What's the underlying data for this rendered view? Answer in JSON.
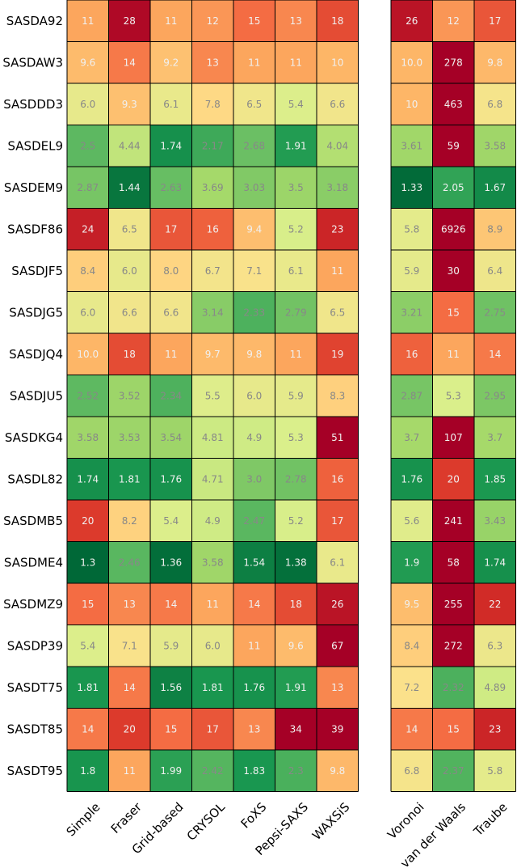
{
  "chart_data": {
    "type": "heatmap",
    "rows": [
      "SASDA92",
      "SASDAW3",
      "SASDDD3",
      "SASDEL9",
      "SASDEM9",
      "SASDF86",
      "SASDJF5",
      "SASDJG5",
      "SASDJQ4",
      "SASDJU5",
      "SASDKG4",
      "SASDL82",
      "SASDMB5",
      "SASDME4",
      "SASDMZ9",
      "SASDP39",
      "SASDT75",
      "SASDT85",
      "SASDT95"
    ],
    "panels": [
      {
        "columns": [
          "Simple",
          "Fraser",
          "Grid-based",
          "CRYSOL",
          "FoXS",
          "Pepsi-SAXS",
          "WAXSiS"
        ],
        "values": [
          [
            "11",
            "28",
            "11",
            "12",
            "15",
            "13",
            "18"
          ],
          [
            "9.6",
            "14",
            "9.2",
            "13",
            "11",
            "11",
            "10"
          ],
          [
            "6.0",
            "9.3",
            "6.1",
            "7.8",
            "6.5",
            "5.4",
            "6.6"
          ],
          [
            "2.5",
            "4.44",
            "1.74",
            "2.17",
            "2.68",
            "1.91",
            "4.04"
          ],
          [
            "2.87",
            "1.44",
            "2.63",
            "3.69",
            "3.03",
            "3.5",
            "3.18"
          ],
          [
            "24",
            "6.5",
            "17",
            "16",
            "9.4",
            "5.2",
            "23"
          ],
          [
            "8.4",
            "6.0",
            "8.0",
            "6.7",
            "7.1",
            "6.1",
            "11"
          ],
          [
            "6.0",
            "6.6",
            "6.6",
            "3.14",
            "2.33",
            "2.79",
            "6.5"
          ],
          [
            "10.0",
            "18",
            "11",
            "9.7",
            "9.8",
            "11",
            "19"
          ],
          [
            "2.52",
            "3.52",
            "2.34",
            "5.5",
            "6.0",
            "5.9",
            "8.3"
          ],
          [
            "3.58",
            "3.53",
            "3.54",
            "4.81",
            "4.9",
            "5.3",
            "51"
          ],
          [
            "1.74",
            "1.81",
            "1.76",
            "4.71",
            "3.0",
            "2.78",
            "16"
          ],
          [
            "20",
            "8.2",
            "5.4",
            "4.9",
            "2.47",
            "5.2",
            "17"
          ],
          [
            "1.3",
            "2.46",
            "1.36",
            "3.58",
            "1.54",
            "1.38",
            "6.1"
          ],
          [
            "15",
            "13",
            "14",
            "11",
            "14",
            "18",
            "26"
          ],
          [
            "5.4",
            "7.1",
            "5.9",
            "6.0",
            "11",
            "9.6",
            "67"
          ],
          [
            "1.81",
            "14",
            "1.56",
            "1.81",
            "1.76",
            "1.91",
            "13"
          ],
          [
            "14",
            "20",
            "15",
            "17",
            "13",
            "34",
            "39"
          ],
          [
            "1.8",
            "11",
            "1.99",
            "2.42",
            "1.83",
            "2.3",
            "9.8"
          ]
        ]
      },
      {
        "columns": [
          "Voronoi",
          "van der Waals",
          "Traube"
        ],
        "values": [
          [
            "26",
            "12",
            "17"
          ],
          [
            "10.0",
            "278",
            "9.8"
          ],
          [
            "10",
            "463",
            "6.8"
          ],
          [
            "3.61",
            "59",
            "3.58"
          ],
          [
            "1.33",
            "2.05",
            "1.67"
          ],
          [
            "5.8",
            "6926",
            "8.9"
          ],
          [
            "5.9",
            "30",
            "6.4"
          ],
          [
            "3.21",
            "15",
            "2.75"
          ],
          [
            "16",
            "11",
            "14"
          ],
          [
            "2.87",
            "5.3",
            "2.95"
          ],
          [
            "3.7",
            "107",
            "3.7"
          ],
          [
            "1.76",
            "20",
            "1.85"
          ],
          [
            "5.6",
            "241",
            "3.43"
          ],
          [
            "1.9",
            "58",
            "1.74"
          ],
          [
            "9.5",
            "255",
            "22"
          ],
          [
            "8.4",
            "272",
            "6.3"
          ],
          [
            "7.2",
            "2.32",
            "4.89"
          ],
          [
            "14",
            "15",
            "23"
          ],
          [
            "6.8",
            "2.37",
            "5.8"
          ]
        ]
      }
    ],
    "color_scale": {
      "scale": "log",
      "domain": [
        1.3,
        30
      ],
      "stops": [
        "#006837",
        "#1a9850",
        "#66bd63",
        "#a6d96a",
        "#d9ef8b",
        "#fee08b",
        "#fdae61",
        "#f46d43",
        "#d73027",
        "#a50026"
      ],
      "light_text": "#f0f0f0",
      "dark_text": "#888888"
    },
    "grid_color": "#000000"
  }
}
